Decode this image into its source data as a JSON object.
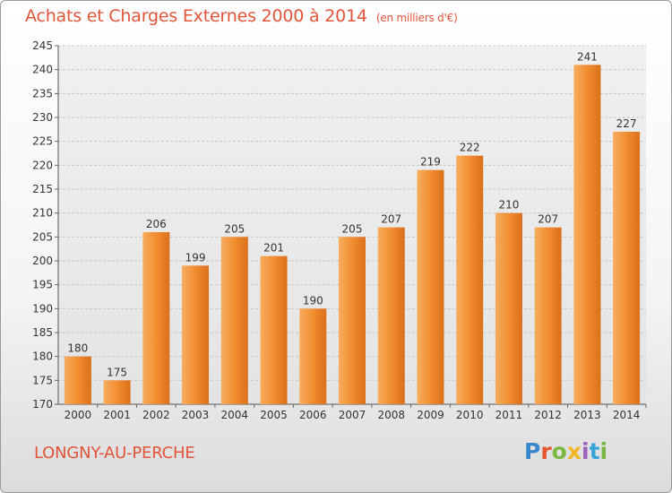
{
  "header": {
    "title": "Achats et Charges Externes 2000 à 2014",
    "unit": "(en milliers d'€)"
  },
  "footer": {
    "town": "LONGNY-AU-PERCHE",
    "logo_letters": [
      "P",
      "r",
      "o",
      "x",
      "i",
      "t",
      "i"
    ]
  },
  "colors": {
    "bar": "#f08a2c",
    "bar_light": "#f7ad5e",
    "title": "#e0553a"
  },
  "chart_data": {
    "type": "bar",
    "title": "Achats et Charges Externes 2000 à 2014",
    "subtitle": "(en milliers d'€)",
    "categories": [
      "2000",
      "2001",
      "2002",
      "2003",
      "2004",
      "2005",
      "2006",
      "2007",
      "2008",
      "2009",
      "2010",
      "2011",
      "2012",
      "2013",
      "2014"
    ],
    "values": [
      180,
      175,
      206,
      199,
      205,
      201,
      190,
      205,
      207,
      219,
      222,
      210,
      207,
      241,
      227
    ],
    "ylim": [
      170,
      245
    ],
    "yticks": [
      170,
      175,
      180,
      185,
      190,
      195,
      200,
      205,
      210,
      215,
      220,
      225,
      230,
      235,
      240,
      245
    ],
    "grid": true,
    "legend": "none"
  }
}
